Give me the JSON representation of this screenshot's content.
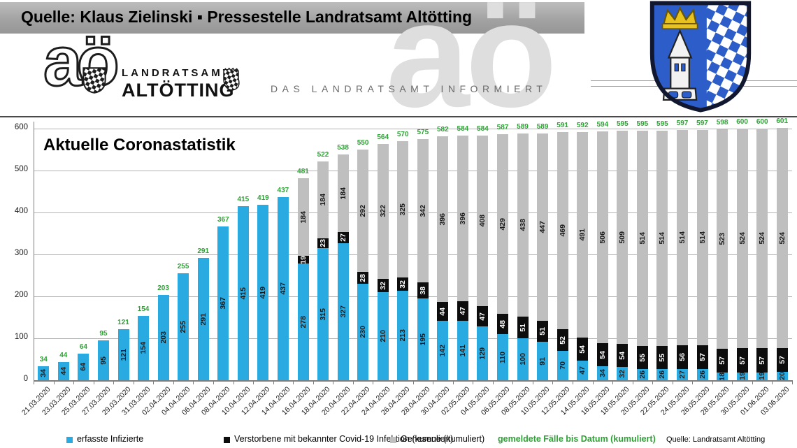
{
  "header": {
    "banner_title": "Quelle: Klaus Zielinski ▪ Pressestelle Landratsamt Altötting",
    "watermark": "aö",
    "logo": {
      "mark": "aö",
      "line1": "LANDRATSAMT",
      "line2": "ALTÖTTING"
    },
    "tagline": "DAS LANDRATSAMT INFORMIERT"
  },
  "chart_data": {
    "type": "bar",
    "stacked": true,
    "title": "Aktuelle Coronastatistik",
    "xlabel": "",
    "ylabel": "",
    "ylim": [
      0,
      600
    ],
    "yticks": [
      0,
      100,
      200,
      300,
      400,
      500,
      600
    ],
    "grid": true,
    "legend_position": "bottom",
    "categories": [
      "21.03.2020",
      "23.03.2020",
      "25.03.2020",
      "27.03.2020",
      "29.03.2020",
      "31.03.2020",
      "02.04.2020",
      "04.04.2020",
      "06.04.2020",
      "08.04.2020",
      "10.04.2020",
      "12.04.2020",
      "14.04.2020",
      "16.04.2020",
      "18.04.2020",
      "20.04.2020",
      "22.04.2020",
      "24.04.2020",
      "26.04.2020",
      "28.04.2020",
      "30.04.2020",
      "02.05.2020",
      "04.05.2020",
      "06.05.2020",
      "08.05.2020",
      "10.05.2020",
      "12.05.2020",
      "14.05.2020",
      "16.05.2020",
      "18.05.2020",
      "20.05.2020",
      "22.05.2020",
      "24.05.2020",
      "26.05.2020",
      "28.05.2020",
      "30.05.2020",
      "01.06.2020",
      "03.06.2020"
    ],
    "series": [
      {
        "name": "erfasste Infizierte",
        "color": "#29abe2",
        "label_color": "#1a1a1a",
        "values": [
          34,
          44,
          64,
          95,
          121,
          154,
          203,
          255,
          291,
          367,
          415,
          419,
          437,
          278,
          315,
          327,
          230,
          210,
          213,
          195,
          142,
          141,
          129,
          110,
          100,
          91,
          70,
          47,
          34,
          32,
          26,
          26,
          27,
          26,
          18,
          19,
          19,
          20
        ]
      },
      {
        "name": "Verstorbene mit bekannter Covid-19 Infektion (kumuliert)",
        "color": "#0d0d0d",
        "label_color": "#ffffff",
        "values": [
          0,
          0,
          0,
          0,
          0,
          0,
          0,
          0,
          0,
          0,
          0,
          0,
          0,
          19,
          23,
          27,
          28,
          32,
          32,
          38,
          44,
          47,
          47,
          48,
          51,
          51,
          52,
          54,
          54,
          54,
          55,
          55,
          56,
          57,
          57,
          57,
          57,
          57
        ]
      },
      {
        "name": "Genesene (kumuliert)",
        "color": "#bfbfbf",
        "label_color": "#1a1a1a",
        "values": [
          0,
          0,
          0,
          0,
          0,
          0,
          0,
          0,
          0,
          0,
          0,
          0,
          0,
          184,
          184,
          184,
          292,
          322,
          325,
          342,
          396,
          396,
          408,
          429,
          438,
          447,
          469,
          491,
          506,
          509,
          514,
          514,
          514,
          514,
          523,
          524,
          524,
          524
        ]
      }
    ],
    "totals": {
      "name": "gemeldete Fälle bis Datum (kumuliert)",
      "color": "#2fa136",
      "values": [
        34,
        44,
        64,
        95,
        121,
        154,
        203,
        255,
        291,
        367,
        415,
        419,
        437,
        481,
        522,
        538,
        550,
        564,
        570,
        575,
        582,
        584,
        584,
        587,
        589,
        589,
        591,
        592,
        594,
        595,
        595,
        595,
        597,
        597,
        598,
        600,
        600,
        601
      ]
    }
  },
  "legend": {
    "items": [
      {
        "label": "erfasste Infizierte",
        "color": "#29abe2"
      },
      {
        "label": "Verstorbene mit bekannter Covid-19 Infektion (kumuliert)",
        "color": "#0d0d0d"
      },
      {
        "label": "Genesene (kumuliert)",
        "color": "#bfbfbf"
      }
    ],
    "note": {
      "label": "gemeldete Fälle bis Datum (kumuliert)",
      "color": "#2fa136"
    }
  },
  "source": "Quelle: Landratsamt Altötting"
}
